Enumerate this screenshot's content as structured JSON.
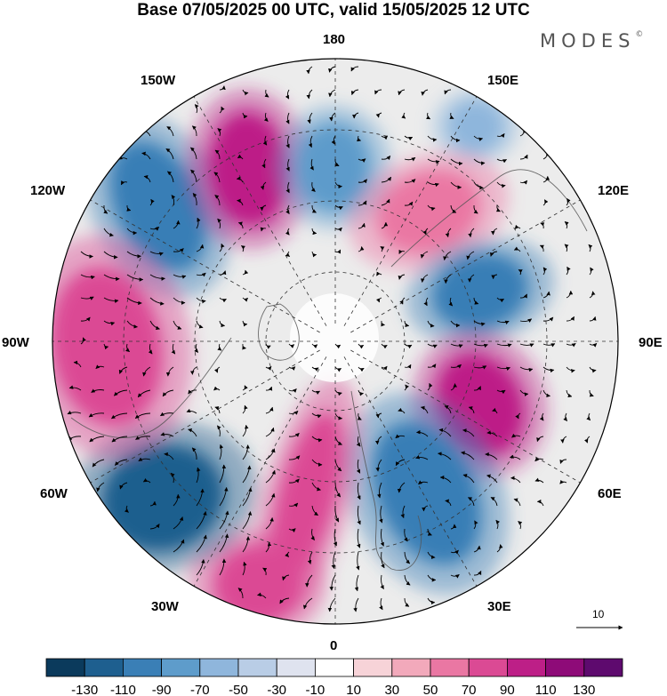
{
  "title": "Base 07/05/2025 00 UTC, valid 15/05/2025 12 UTC",
  "brand": "MODES",
  "brand_mark": "©",
  "longitude_labels": {
    "top": "180",
    "bottom": "0",
    "left": "90W",
    "right": "90E",
    "upper_left_1": "150W",
    "upper_left_2": "120W",
    "upper_right_1": "150E",
    "upper_right_2": "120E",
    "lower_left_1": "60W",
    "lower_left_2": "30W",
    "lower_right_1": "60E",
    "lower_right_2": "30E"
  },
  "vector_reference": {
    "label": "10"
  },
  "colorbar": {
    "tick_labels": [
      "-130",
      "-110",
      "-90",
      "-70",
      "-50",
      "-30",
      "-10",
      "10",
      "30",
      "50",
      "70",
      "90",
      "110",
      "130"
    ],
    "colors": [
      "#0b3a5c",
      "#1e5f8f",
      "#3a7fb6",
      "#5e9ccb",
      "#8fb6dc",
      "#b9cde6",
      "#dfe3ef",
      "#ffffff",
      "#f7d3d8",
      "#f2a9bb",
      "#ea77a3",
      "#db4a94",
      "#bd1f87",
      "#8e0b78",
      "#5e0a6e"
    ]
  },
  "anomalies": [
    {
      "name": "low-pacific-120w",
      "color": "#3a7fb6"
    },
    {
      "name": "high-pacific-160w",
      "color": "#bd1f87"
    },
    {
      "name": "low-pacific-170e",
      "color": "#5e9ccb"
    },
    {
      "name": "low-pacific-140e",
      "color": "#8fb6dc"
    },
    {
      "name": "high-siberia-120e",
      "color": "#ea77a3"
    },
    {
      "name": "low-siberia-80e",
      "color": "#3a7fb6"
    },
    {
      "name": "high-central-asia-60e",
      "color": "#bd1f87"
    },
    {
      "name": "low-europe-30e",
      "color": "#3a7fb6"
    },
    {
      "name": "high-north-atlantic-10w",
      "color": "#db4a94"
    },
    {
      "name": "high-atlantic-30w",
      "color": "#db4a94"
    },
    {
      "name": "low-atlantic-50w",
      "color": "#1e5f8f"
    },
    {
      "name": "high-north-america-90w",
      "color": "#db4a94"
    }
  ]
}
